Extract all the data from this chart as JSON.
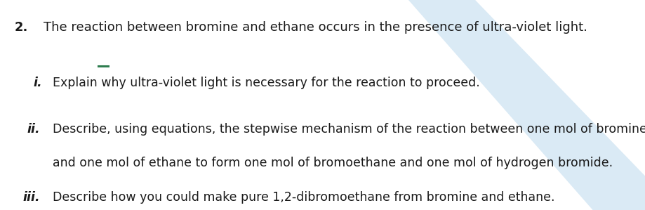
{
  "background_color": "#ffffff",
  "watermark_color": "#daeaf5",
  "title_num": "2.",
  "title_text": "The reaction between bromine and ethane occurs in the presence of ultra-violet light.",
  "item_i_label": "i.",
  "item_i_text": "Explain why ultra-violet light is necessary for the reaction to proceed.",
  "item_ii_label": "ii.",
  "item_ii_line1": "Describe, using equations, the stepwise mechanism of the reaction between one mol of bromine",
  "item_ii_line2": "and one mol of ethane to form one mol of bromoethane and one mol of hydrogen bromide.",
  "item_iii_label": "iii.",
  "item_iii_text": "Describe how you could make pure 1,2-dibromoethane from bromine and ethane.",
  "accent_line_color": "#2e7d4f",
  "font_color": "#1a1a1a",
  "font_size_title": 13.0,
  "font_size_body": 12.5,
  "figsize": [
    9.19,
    2.99
  ],
  "dpi": 100
}
